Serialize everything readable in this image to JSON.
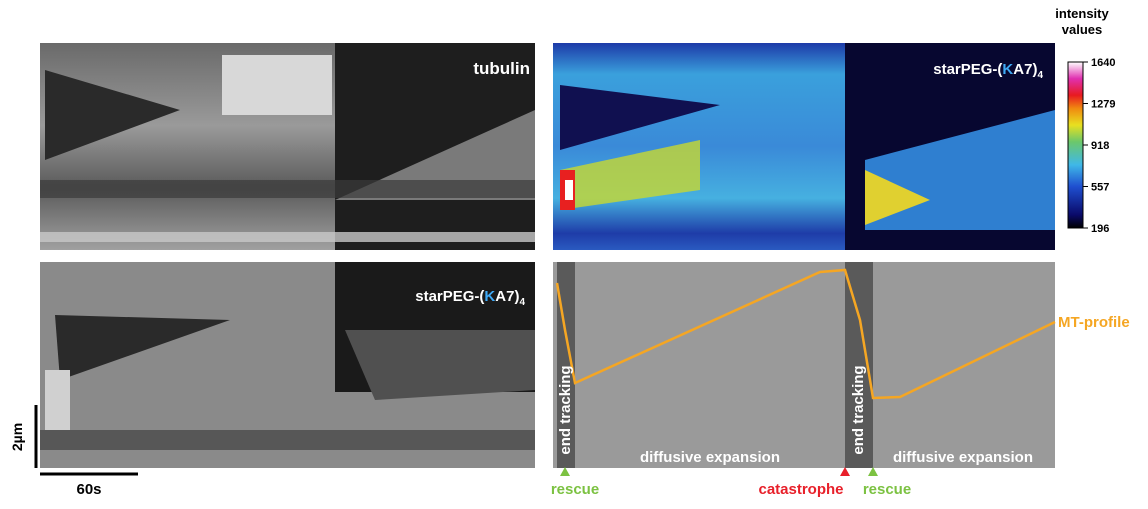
{
  "panels": {
    "tubulin_label": "tubulin",
    "peg_label": {
      "prefix": "starPEG-(",
      "k": "K",
      "suffix": "A7)",
      "sub": "4"
    }
  },
  "colorbar": {
    "title": [
      "intensity",
      "values"
    ],
    "range": [
      196,
      1640
    ],
    "ticks": [
      1640,
      1279,
      918,
      557,
      196
    ]
  },
  "scale_bars": {
    "length": "2µm",
    "time": "60s"
  },
  "schematic": {
    "phases": [
      "end tracking",
      "diffusive expansion",
      "end tracking",
      "diffusive expansion"
    ],
    "events": [
      "rescue",
      "catastrophe",
      "rescue"
    ],
    "profile_label": "MT-profile"
  }
}
